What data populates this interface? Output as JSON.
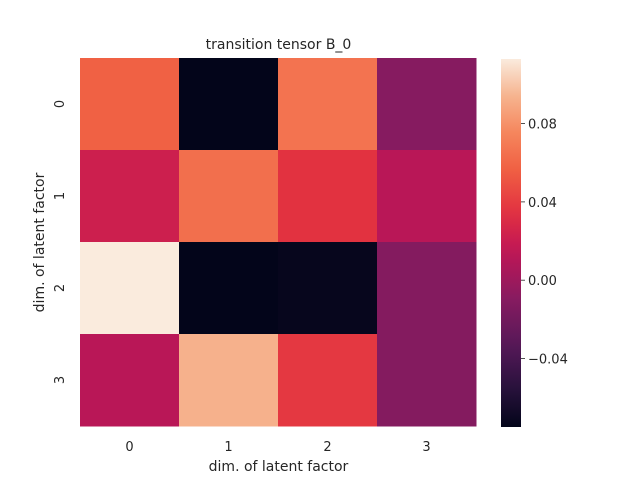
{
  "chart_data": {
    "type": "heatmap",
    "title": "transition tensor B_0",
    "xlabel": "dim. of latent factor",
    "ylabel": "dim. of latent factor",
    "x_categories": [
      "0",
      "1",
      "2",
      "3"
    ],
    "y_categories": [
      "0",
      "1",
      "2",
      "3"
    ],
    "values": [
      [
        0.057,
        -0.075,
        0.066,
        -0.01
      ],
      [
        0.022,
        0.064,
        0.035,
        0.012
      ],
      [
        0.113,
        -0.075,
        -0.073,
        -0.011
      ],
      [
        0.012,
        0.093,
        0.038,
        -0.011
      ]
    ],
    "colorbar": {
      "min": -0.075,
      "max": 0.113,
      "ticks": [
        -0.04,
        0.0,
        0.04,
        0.08
      ],
      "tick_labels": [
        "−0.04",
        "0.00",
        "0.04",
        "0.08"
      ]
    },
    "colormap": "rocket",
    "grid": false
  }
}
